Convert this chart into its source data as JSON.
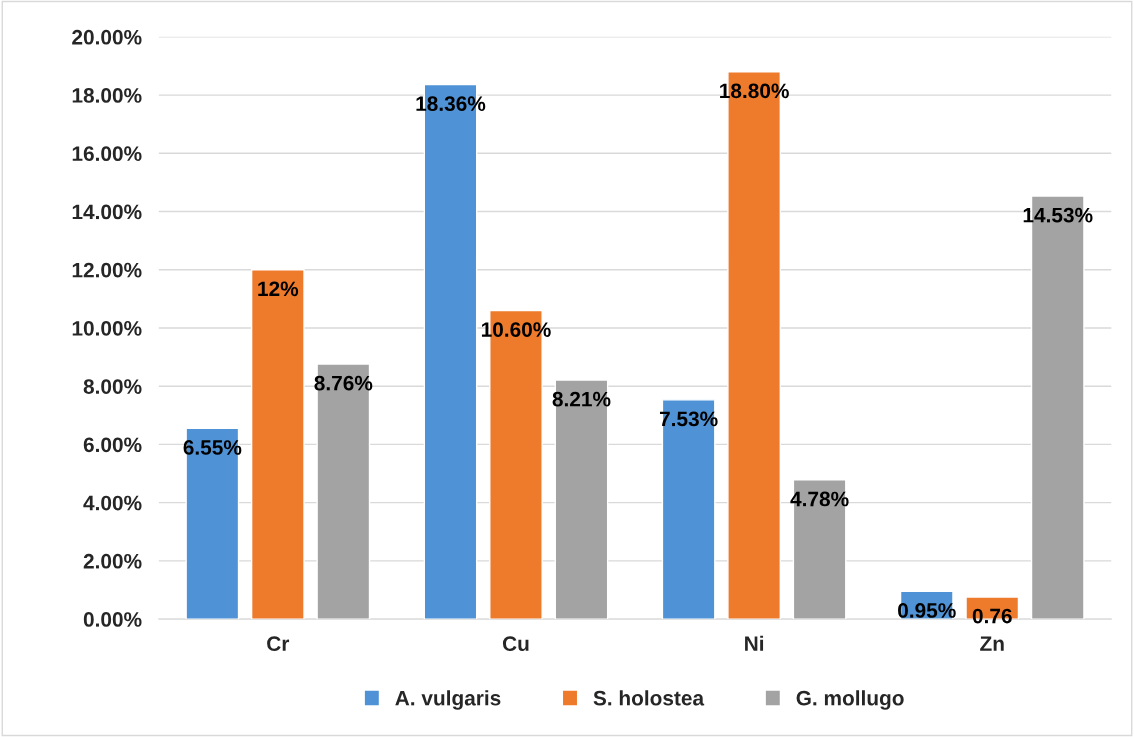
{
  "chart_data": {
    "type": "bar",
    "categories": [
      "Cr",
      "Cu",
      "Ni",
      "Zn"
    ],
    "series": [
      {
        "name": "A. vulgaris",
        "color": "#4f93d6",
        "values": [
          6.55,
          18.36,
          7.53,
          0.95
        ],
        "value_labels": [
          "6.55%",
          "18.36%",
          "7.53%",
          "0.95%"
        ]
      },
      {
        "name": "S. holostea",
        "color": "#ee7a2c",
        "values": [
          12,
          10.6,
          18.8,
          0.76
        ],
        "value_labels": [
          "12%",
          "10.60%",
          "18.80%",
          "0.76"
        ]
      },
      {
        "name": "G. mollugo",
        "color": "#a3a3a3",
        "values": [
          8.76,
          8.21,
          4.78,
          14.53
        ],
        "value_labels": [
          "8.76%",
          "8.21%",
          "4.78%",
          "14.53%"
        ]
      }
    ],
    "ylim": [
      0,
      20
    ],
    "yticks": [
      {
        "value": 0,
        "label": "0.00%"
      },
      {
        "value": 2,
        "label": "2.00%"
      },
      {
        "value": 4,
        "label": "4.00%"
      },
      {
        "value": 6,
        "label": "6.00%"
      },
      {
        "value": 8,
        "label": "8.00%"
      },
      {
        "value": 10,
        "label": "10.00%"
      },
      {
        "value": 12,
        "label": "12.00%"
      },
      {
        "value": 14,
        "label": "14.00%"
      },
      {
        "value": 16,
        "label": "16.00%"
      },
      {
        "value": 18,
        "label": "18.00%"
      },
      {
        "value": 20,
        "label": "20.00%"
      }
    ],
    "grid": "y",
    "legend": "bottom"
  }
}
